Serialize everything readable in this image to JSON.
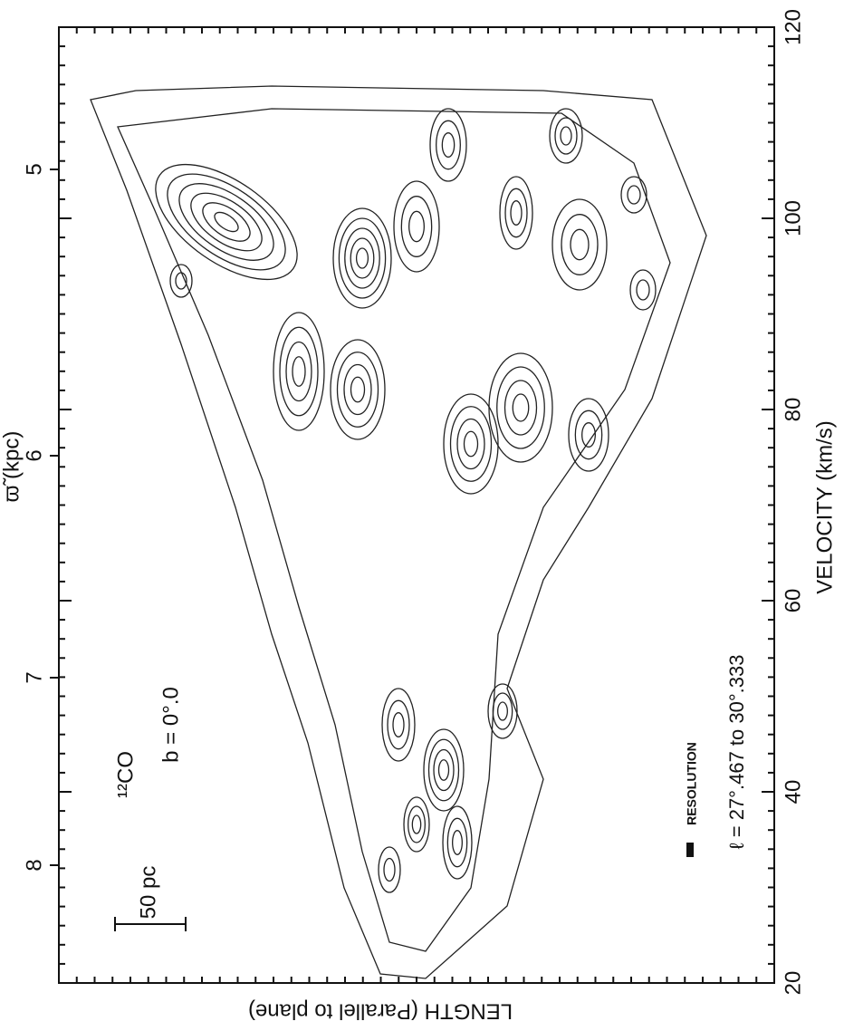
{
  "chart_data": {
    "type": "contour",
    "y_label": "VELOCITY (km/s)",
    "ylim": [
      20,
      120
    ],
    "yticks": [
      20,
      40,
      60,
      80,
      100,
      120
    ],
    "x_label": "ϖ̃ (kpc)",
    "xticks": [
      5,
      6,
      7,
      8
    ],
    "length_label": "LENGTH (Parallel to plane)",
    "annotations": [
      "¹²CO",
      "b = 0°.0",
      "50 pc",
      "RESOLUTION",
      "ℓ = 27°.467 to 30°.333"
    ]
  }
}
